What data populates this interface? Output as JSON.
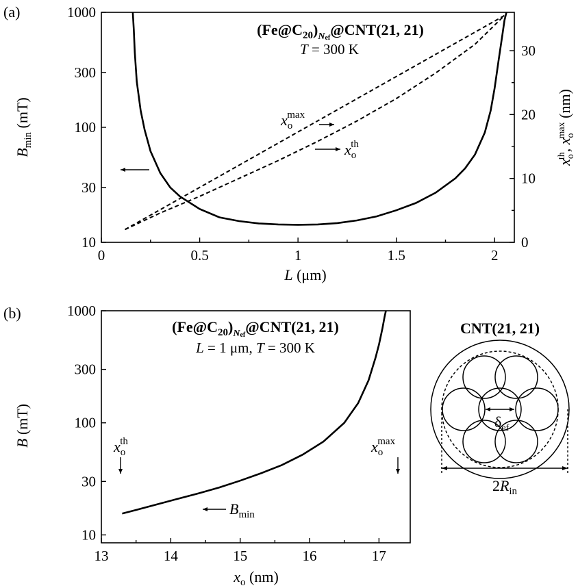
{
  "chart_data": [
    {
      "panel": "(a)",
      "type": "line",
      "title": "(Fe@C20)Nef@CNT(21, 21)",
      "title_parts": {
        "main": "(Fe@C",
        "sub1": "20",
        "mid": ")",
        "sub2": "N",
        "sub3": "ef",
        "tail": "@CNT(21, 21)"
      },
      "subtitle": "T = 300 K",
      "subtitle_parts": {
        "var": "T",
        "rest": " = 300 K"
      },
      "xlabel": "L (μm)",
      "xlabel_parts": {
        "var": "L",
        "rest": " (μm)"
      },
      "ylabel": "Bmin (mT)",
      "ylabel_parts": {
        "var": "B",
        "sub": "min",
        "rest": " (mT)"
      },
      "y2label": "xoth, xomax (nm)",
      "y2label_parts": {
        "v1": "x",
        "s1": "o",
        "p1": "th",
        "sep": ", ",
        "v2": "x",
        "s2": "o",
        "p2": "max",
        "rest": " (nm)"
      },
      "xlim": [
        0,
        2.1
      ],
      "ylim": [
        10,
        1000
      ],
      "yscale": "log",
      "y2lim": [
        0,
        36
      ],
      "xticks": [
        "0",
        "0.5",
        "1",
        "1.5",
        "2"
      ],
      "xtick_values": [
        0,
        0.5,
        1,
        1.5,
        2
      ],
      "yticks": [
        "10",
        "30",
        "100",
        "300",
        "1000"
      ],
      "ytick_values": [
        10,
        30,
        100,
        300,
        1000
      ],
      "y2ticks": [
        "0",
        "10",
        "20",
        "30"
      ],
      "y2tick_values": [
        0,
        10,
        20,
        30
      ],
      "series": [
        {
          "axis": "left",
          "style": "solid",
          "x": [
            0.16,
            0.165,
            0.17,
            0.18,
            0.2,
            0.22,
            0.25,
            0.3,
            0.35,
            0.4,
            0.5,
            0.6,
            0.7,
            0.8,
            0.9,
            1.0,
            1.1,
            1.2,
            1.3,
            1.4,
            1.5,
            1.6,
            1.7,
            1.8,
            1.85,
            1.9,
            1.95,
            1.98,
            2.0,
            2.02,
            2.04,
            2.05,
            2.06
          ],
          "y": [
            1000,
            700,
            450,
            250,
            140,
            95,
            62,
            40,
            30,
            25,
            19.5,
            16.5,
            15.3,
            14.6,
            14.3,
            14.2,
            14.3,
            14.7,
            15.5,
            16.8,
            19,
            22,
            27,
            36,
            44,
            58,
            90,
            140,
            220,
            380,
            650,
            850,
            1000
          ]
        },
        {
          "name": "xomax",
          "axis": "right",
          "style": "dashed",
          "x": [
            0.12,
            2.05
          ],
          "y": [
            2.0,
            35.5
          ]
        },
        {
          "name": "xoth",
          "axis": "right",
          "style": "dashed",
          "x": [
            0.12,
            0.3,
            0.5,
            0.7,
            0.9,
            1.1,
            1.3,
            1.5,
            1.7,
            1.9,
            2.05
          ],
          "y": [
            2.0,
            4.6,
            7.2,
            10.0,
            12.8,
            15.8,
            19.0,
            22.5,
            26.5,
            31.0,
            35.5
          ]
        }
      ],
      "annotations": {
        "xomax": {
          "var": "x",
          "sub": "o",
          "sup": "max"
        },
        "xoth": {
          "var": "x",
          "sub": "o",
          "sup": "th"
        }
      }
    },
    {
      "panel": "(b)",
      "type": "line",
      "title": "(Fe@C20)Nef@CNT(21, 21)",
      "title_parts": {
        "main": "(Fe@C",
        "sub1": "20",
        "mid": ")",
        "sub2": "N",
        "sub3": "ef",
        "tail": "@CNT(21, 21)"
      },
      "subtitle": "L = 1 μm, T = 300 K",
      "subtitle_parts": {
        "v1": "L",
        "r1": " = 1 μm, ",
        "v2": "T",
        "r2": " = 300 K"
      },
      "xlabel": "xo (nm)",
      "xlabel_parts": {
        "var": "x",
        "sub": "o",
        "rest": " (nm)"
      },
      "ylabel": "B (mT)",
      "ylabel_parts": {
        "var": "B",
        "rest": " (mT)"
      },
      "xlim": [
        13,
        17.45
      ],
      "ylim": [
        8.5,
        1000
      ],
      "yscale": "log",
      "xticks": [
        "13",
        "14",
        "15",
        "16",
        "17"
      ],
      "xtick_values": [
        13,
        14,
        15,
        16,
        17
      ],
      "yticks": [
        "10",
        "30",
        "100",
        "300",
        "1000"
      ],
      "ytick_values": [
        10,
        30,
        100,
        300,
        1000
      ],
      "series": [
        {
          "style": "solid",
          "x": [
            13.3,
            13.5,
            13.8,
            14.1,
            14.4,
            14.7,
            15.0,
            15.3,
            15.6,
            15.9,
            16.2,
            16.5,
            16.7,
            16.85,
            16.95,
            17.0,
            17.05,
            17.08,
            17.1
          ],
          "y": [
            15.5,
            16.7,
            18.7,
            21,
            23.5,
            26.5,
            30.5,
            35.5,
            42,
            52,
            68,
            100,
            150,
            240,
            380,
            500,
            700,
            880,
            1000
          ]
        }
      ],
      "annotations": {
        "left_marker": {
          "var": "x",
          "sub": "o",
          "sup": "th"
        },
        "right_marker": {
          "var": "x",
          "sub": "o",
          "sup": "max"
        },
        "curve_label": {
          "var": "B",
          "sub": "min"
        }
      }
    }
  ],
  "inset": {
    "title": "CNT(21, 21)",
    "delta_label": {
      "sym": "δ",
      "sub": "ef"
    },
    "diameter_label": {
      "num": "2",
      "var": "R",
      "sub": "in"
    }
  }
}
